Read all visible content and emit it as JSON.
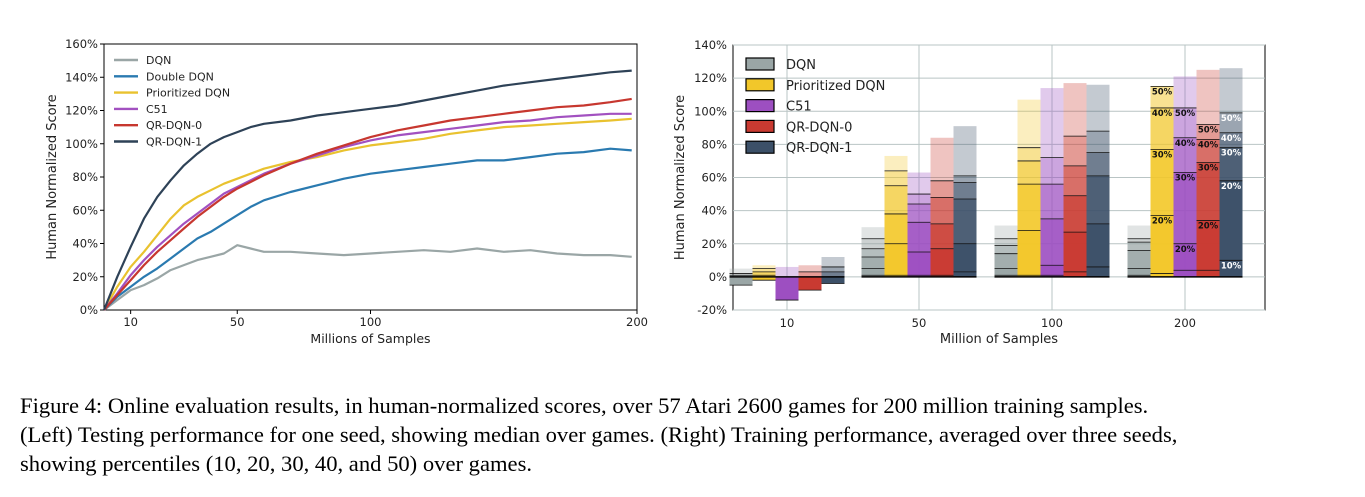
{
  "caption": {
    "line1": "Figure 4: Online evaluation results, in human-normalized scores, over 57 Atari 2600 games for 200 million training samples.",
    "line2": "(Left) Testing performance for one seed, showing median over games. (Right) Training performance, averaged over three seeds,",
    "line3": "showing percentiles (10, 20, 30, 40, and 50) over games."
  },
  "chart_data": [
    {
      "type": "line",
      "title": "",
      "xlabel": "Millions of Samples",
      "ylabel": "Human Normalized Score",
      "xlim": [
        0,
        200
      ],
      "ylim": [
        0,
        160
      ],
      "x_ticks": [
        10,
        50,
        100,
        200
      ],
      "y_ticks": [
        "0%",
        "20%",
        "40%",
        "60%",
        "80%",
        "100%",
        "120%",
        "140%",
        "160%"
      ],
      "legend_position": "top-left",
      "series": [
        {
          "name": "DQN",
          "color": "#9aa6a6",
          "x": [
            0,
            5,
            10,
            15,
            20,
            25,
            30,
            35,
            40,
            45,
            50,
            55,
            60,
            70,
            80,
            90,
            100,
            110,
            120,
            130,
            140,
            150,
            160,
            170,
            180,
            190,
            198
          ],
          "y": [
            0,
            6,
            12,
            15,
            19,
            24,
            27,
            30,
            32,
            34,
            39,
            37,
            35,
            35,
            34,
            33,
            34,
            35,
            36,
            35,
            37,
            35,
            36,
            34,
            33,
            33,
            32
          ]
        },
        {
          "name": "Double DQN",
          "color": "#2a7ab0",
          "x": [
            0,
            5,
            10,
            15,
            20,
            25,
            30,
            35,
            40,
            45,
            50,
            55,
            60,
            70,
            80,
            90,
            100,
            110,
            120,
            130,
            140,
            150,
            160,
            170,
            180,
            190,
            198
          ],
          "y": [
            0,
            8,
            14,
            20,
            25,
            31,
            37,
            43,
            47,
            52,
            57,
            62,
            66,
            71,
            75,
            79,
            82,
            84,
            86,
            88,
            90,
            90,
            92,
            94,
            95,
            97,
            96
          ]
        },
        {
          "name": "Prioritized DQN",
          "color": "#e9c22f",
          "x": [
            0,
            5,
            10,
            15,
            20,
            25,
            30,
            35,
            40,
            45,
            50,
            55,
            60,
            70,
            80,
            90,
            100,
            110,
            120,
            130,
            140,
            150,
            160,
            170,
            180,
            190,
            198
          ],
          "y": [
            0,
            14,
            26,
            35,
            45,
            55,
            63,
            68,
            72,
            76,
            79,
            82,
            85,
            89,
            92,
            96,
            99,
            101,
            103,
            106,
            108,
            110,
            111,
            112,
            113,
            114,
            115
          ]
        },
        {
          "name": "C51",
          "color": "#a251c0",
          "x": [
            0,
            5,
            10,
            15,
            20,
            25,
            30,
            35,
            40,
            45,
            50,
            55,
            60,
            70,
            80,
            90,
            100,
            110,
            120,
            130,
            140,
            150,
            160,
            170,
            180,
            190,
            198
          ],
          "y": [
            0,
            10,
            21,
            30,
            38,
            45,
            52,
            58,
            64,
            70,
            74,
            78,
            82,
            88,
            93,
            98,
            102,
            105,
            107,
            109,
            111,
            113,
            114,
            116,
            117,
            118,
            118
          ]
        },
        {
          "name": "QR-DQN-0",
          "color": "#c7372f",
          "x": [
            0,
            5,
            10,
            15,
            20,
            25,
            30,
            35,
            40,
            45,
            50,
            55,
            60,
            70,
            80,
            90,
            100,
            110,
            120,
            130,
            140,
            150,
            160,
            170,
            180,
            190,
            198
          ],
          "y": [
            0,
            9,
            18,
            27,
            35,
            42,
            49,
            56,
            62,
            68,
            73,
            77,
            81,
            88,
            94,
            99,
            104,
            108,
            111,
            114,
            116,
            118,
            120,
            122,
            123,
            125,
            127
          ]
        },
        {
          "name": "QR-DQN-1",
          "color": "#2e4257",
          "x": [
            0,
            5,
            10,
            15,
            20,
            25,
            30,
            35,
            40,
            45,
            50,
            55,
            60,
            70,
            80,
            90,
            100,
            110,
            120,
            130,
            140,
            150,
            160,
            170,
            180,
            190,
            198
          ],
          "y": [
            0,
            20,
            38,
            55,
            68,
            78,
            87,
            94,
            100,
            104,
            107,
            110,
            112,
            114,
            117,
            119,
            121,
            123,
            126,
            129,
            132,
            135,
            137,
            139,
            141,
            143,
            144
          ]
        }
      ]
    },
    {
      "type": "bar",
      "title": "",
      "xlabel": "Million of Samples",
      "ylabel": "Human Normalized Score",
      "ylim": [
        -20,
        140
      ],
      "y_ticks": [
        "-20%",
        "0%",
        "20%",
        "40%",
        "60%",
        "80%",
        "100%",
        "120%",
        "140%"
      ],
      "categories": [
        "10",
        "50",
        "100",
        "200"
      ],
      "percentiles": [
        "10",
        "20",
        "30",
        "40",
        "50"
      ],
      "legend_position": "top-left",
      "percentile_labels": [
        "10%",
        "20%",
        "30%",
        "40%",
        "50%"
      ],
      "series": [
        {
          "name": "DQN",
          "color": "#9aa6a6",
          "values": [
            [
              -5,
              -3,
              -1,
              1,
              2
            ],
            [
              1,
              5,
              12,
              17,
              23
            ],
            [
              1,
              5,
              14,
              19,
              23
            ],
            [
              1,
              5,
              16,
              21,
              23
            ]
          ]
        },
        {
          "name": "Prioritized DQN",
          "color": "#f2c72a",
          "values": [
            [
              -2,
              0,
              1,
              3,
              5
            ],
            [
              1,
              20,
              38,
              55,
              64
            ],
            [
              1,
              28,
              56,
              70,
              78
            ],
            [
              2,
              37,
              77,
              102,
              115
            ]
          ]
        },
        {
          "name": "C51",
          "color": "#9d4fc1",
          "values": [
            [
              -14,
              -12,
              -8,
              -5,
              -3
            ],
            [
              1,
              15,
              33,
              44,
              50
            ],
            [
              1,
              7,
              35,
              56,
              72
            ],
            [
              4,
              20,
              63,
              84,
              102
            ]
          ]
        },
        {
          "name": "QR-DQN-0",
          "color": "#c93a31",
          "values": [
            [
              -8,
              -6,
              -3,
              0,
              3
            ],
            [
              1,
              17,
              32,
              48,
              58
            ],
            [
              3,
              27,
              49,
              67,
              85
            ],
            [
              4,
              34,
              69,
              83,
              92
            ]
          ]
        },
        {
          "name": "QR-DQN-1",
          "color": "#3c5068",
          "values": [
            [
              -4,
              -2,
              0,
              3,
              6
            ],
            [
              3,
              20,
              47,
              57,
              61
            ],
            [
              6,
              32,
              61,
              75,
              88
            ],
            [
              10,
              58,
              78,
              87,
              99
            ]
          ]
        }
      ],
      "bar_tops": [
        [
          5,
          7,
          6,
          7,
          12
        ],
        [
          30,
          73,
          63,
          84,
          91
        ],
        [
          31,
          107,
          114,
          117,
          116
        ],
        [
          31,
          115,
          121,
          125,
          126
        ]
      ]
    }
  ]
}
